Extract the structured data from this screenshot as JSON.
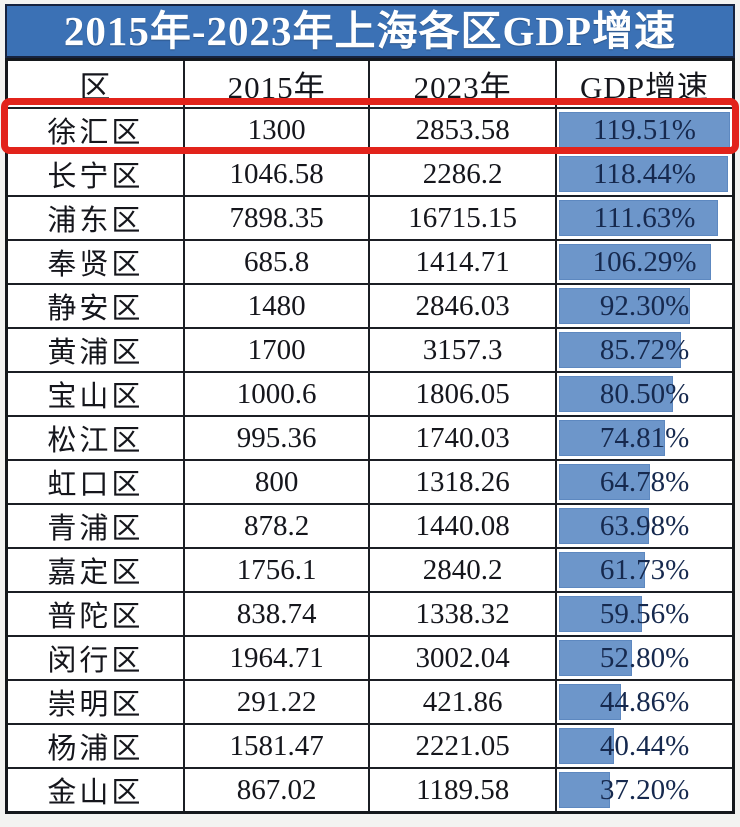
{
  "title": "2015年-2023年上海各区GDP增速",
  "table": {
    "headers": [
      "区",
      "2015年",
      "2023年",
      "GDP增速"
    ],
    "rows": [
      {
        "district": "徐汇区",
        "y2015": "1300",
        "y2023": "2853.58",
        "growth_label": "119.51%",
        "growth_value": 119.51,
        "highlighted": true
      },
      {
        "district": "长宁区",
        "y2015": "1046.58",
        "y2023": "2286.2",
        "growth_label": "118.44%",
        "growth_value": 118.44,
        "highlighted": false
      },
      {
        "district": "浦东区",
        "y2015": "7898.35",
        "y2023": "16715.15",
        "growth_label": "111.63%",
        "growth_value": 111.63,
        "highlighted": false
      },
      {
        "district": "奉贤区",
        "y2015": "685.8",
        "y2023": "1414.71",
        "growth_label": "106.29%",
        "growth_value": 106.29,
        "highlighted": false
      },
      {
        "district": "静安区",
        "y2015": "1480",
        "y2023": "2846.03",
        "growth_label": "92.30%",
        "growth_value": 92.3,
        "highlighted": false
      },
      {
        "district": "黄浦区",
        "y2015": "1700",
        "y2023": "3157.3",
        "growth_label": "85.72%",
        "growth_value": 85.72,
        "highlighted": false
      },
      {
        "district": "宝山区",
        "y2015": "1000.6",
        "y2023": "1806.05",
        "growth_label": "80.50%",
        "growth_value": 80.5,
        "highlighted": false
      },
      {
        "district": "松江区",
        "y2015": "995.36",
        "y2023": "1740.03",
        "growth_label": "74.81%",
        "growth_value": 74.81,
        "highlighted": false
      },
      {
        "district": "虹口区",
        "y2015": "800",
        "y2023": "1318.26",
        "growth_label": "64.78%",
        "growth_value": 64.78,
        "highlighted": false
      },
      {
        "district": "青浦区",
        "y2015": "878.2",
        "y2023": "1440.08",
        "growth_label": "63.98%",
        "growth_value": 63.98,
        "highlighted": false
      },
      {
        "district": "嘉定区",
        "y2015": "1756.1",
        "y2023": "2840.2",
        "growth_label": "61.73%",
        "growth_value": 61.73,
        "highlighted": false
      },
      {
        "district": "普陀区",
        "y2015": "838.74",
        "y2023": "1338.32",
        "growth_label": "59.56%",
        "growth_value": 59.56,
        "highlighted": false
      },
      {
        "district": "闵行区",
        "y2015": "1964.71",
        "y2023": "3002.04",
        "growth_label": "52.80%",
        "growth_value": 52.8,
        "highlighted": false
      },
      {
        "district": "崇明区",
        "y2015": "291.22",
        "y2023": "421.86",
        "growth_label": "44.86%",
        "growth_value": 44.86,
        "highlighted": false
      },
      {
        "district": "杨浦区",
        "y2015": "1581.47",
        "y2023": "2221.05",
        "growth_label": "40.44%",
        "growth_value": 40.44,
        "highlighted": false
      },
      {
        "district": "金山区",
        "y2015": "867.02",
        "y2023": "1189.58",
        "growth_label": "37.20%",
        "growth_value": 37.2,
        "highlighted": false
      }
    ]
  },
  "colors": {
    "title_background": "#3b71b5",
    "title_text": "#ffffff",
    "data_bar_fill": "#6d96ca",
    "highlight_border": "#e2231b",
    "percent_text": "#16294e",
    "grid_border": "#1b1e24"
  },
  "chart_data": {
    "type": "table",
    "title": "2015年-2023年上海各区GDP增速",
    "columns": [
      "区",
      "2015年",
      "2023年",
      "GDP增速"
    ],
    "districts": [
      "徐汇区",
      "长宁区",
      "浦东区",
      "奉贤区",
      "静安区",
      "黄浦区",
      "宝山区",
      "松江区",
      "虹口区",
      "青浦区",
      "嘉定区",
      "普陀区",
      "闵行区",
      "崇明区",
      "杨浦区",
      "金山区"
    ],
    "gdp_2015": [
      1300,
      1046.58,
      7898.35,
      685.8,
      1480,
      1700,
      1000.6,
      995.36,
      800,
      878.2,
      1756.1,
      838.74,
      1964.71,
      291.22,
      1581.47,
      867.02
    ],
    "gdp_2023": [
      2853.58,
      2286.2,
      16715.15,
      1414.71,
      2846.03,
      3157.3,
      1806.05,
      1740.03,
      1318.26,
      1440.08,
      2840.2,
      1338.32,
      3002.04,
      421.86,
      2221.05,
      1189.58
    ],
    "growth_pct": [
      119.51,
      118.44,
      111.63,
      106.29,
      92.3,
      85.72,
      80.5,
      74.81,
      64.78,
      63.98,
      61.73,
      59.56,
      52.8,
      44.86,
      40.44,
      37.2
    ],
    "bar_style": "in-cell data bars, left aligned, scaled 0 to max",
    "bar_scale_max": 119.51,
    "highlighted_row": "徐汇区",
    "sort_order": "growth_pct descending"
  }
}
